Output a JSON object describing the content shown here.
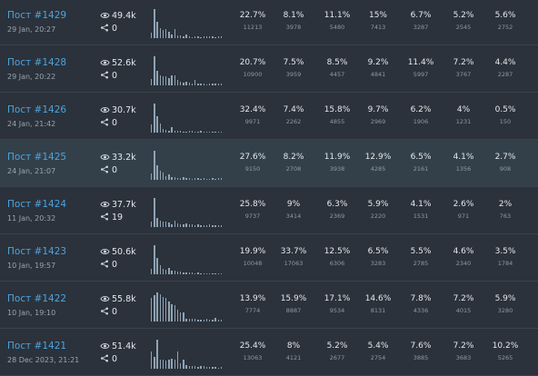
{
  "posts": [
    {
      "title": "Пост #1429",
      "date": "29 Jan, 20:27",
      "views": "49.4k",
      "shares": "0",
      "percents": [
        "22.7%",
        "8.1%",
        "11.1%",
        "15%",
        "6.7%",
        "5.2%",
        "5.6%"
      ],
      "counts": [
        "11213",
        "3978",
        "5480",
        "7413",
        "3287",
        "2545",
        "2752"
      ]
    },
    {
      "title": "Пост #1428",
      "date": "29 Jan, 20:22",
      "views": "52.6k",
      "shares": "0",
      "percents": [
        "20.7%",
        "7.5%",
        "8.5%",
        "9.2%",
        "11.4%",
        "7.2%",
        "4.4%"
      ],
      "counts": [
        "10900",
        "3959",
        "4457",
        "4841",
        "5997",
        "3767",
        "2287"
      ]
    },
    {
      "title": "Пост #1426",
      "date": "24 Jan, 21:42",
      "views": "30.7k",
      "shares": "0",
      "percents": [
        "32.4%",
        "7.4%",
        "15.8%",
        "9.7%",
        "6.2%",
        "4%",
        "0.5%"
      ],
      "counts": [
        "9971",
        "2262",
        "4855",
        "2969",
        "1906",
        "1231",
        "150"
      ]
    },
    {
      "title": "Пост #1425",
      "date": "24 Jan, 21:07",
      "views": "33.2k",
      "shares": "0",
      "percents": [
        "27.6%",
        "8.2%",
        "11.9%",
        "12.9%",
        "6.5%",
        "4.1%",
        "2.7%"
      ],
      "counts": [
        "9150",
        "2708",
        "3938",
        "4285",
        "2161",
        "1356",
        "908"
      ]
    },
    {
      "title": "Пост #1424",
      "date": "11 Jan, 20:32",
      "views": "37.7k",
      "shares": "19",
      "percents": [
        "25.8%",
        "9%",
        "6.3%",
        "5.9%",
        "4.1%",
        "2.6%",
        "2%"
      ],
      "counts": [
        "9737",
        "3414",
        "2369",
        "2220",
        "1531",
        "971",
        "763"
      ]
    },
    {
      "title": "Пост #1423",
      "date": "10 Jan, 19:57",
      "views": "50.6k",
      "shares": "0",
      "percents": [
        "19.9%",
        "33.7%",
        "12.5%",
        "6.5%",
        "5.5%",
        "4.6%",
        "3.5%"
      ],
      "counts": [
        "10048",
        "17063",
        "6306",
        "3283",
        "2785",
        "2340",
        "1784"
      ]
    },
    {
      "title": "Пост #1422",
      "date": "10 Jan, 19:10",
      "views": "55.8k",
      "shares": "0",
      "percents": [
        "13.9%",
        "15.9%",
        "17.1%",
        "14.6%",
        "7.8%",
        "7.2%",
        "5.9%"
      ],
      "counts": [
        "7774",
        "8887",
        "9534",
        "8131",
        "4336",
        "4015",
        "3280"
      ]
    },
    {
      "title": "Пост #1421",
      "date": "28 Dec 2023, 21:21",
      "views": "51.4k",
      "shares": "0",
      "percents": [
        "25.4%",
        "8%",
        "5.2%",
        "5.4%",
        "7.6%",
        "7.2%",
        "10.2%"
      ],
      "counts": [
        "13063",
        "4121",
        "2677",
        "2754",
        "3885",
        "3683",
        "5265"
      ]
    }
  ],
  "sparklines": [
    [
      0.2,
      1,
      0.55,
      0.35,
      0.28,
      0.3,
      0.22,
      0.12,
      0.3,
      0.1,
      0.08,
      0.06,
      0.12,
      0.05,
      0.04,
      0.06,
      0.05,
      0.04,
      0.06,
      0.05,
      0.05,
      0.07,
      0.04,
      0.06,
      0.05
    ],
    [
      0.22,
      1,
      0.5,
      0.35,
      0.3,
      0.3,
      0.25,
      0.35,
      0.33,
      0.2,
      0.12,
      0.1,
      0.12,
      0.08,
      0.06,
      0.2,
      0.05,
      0.05,
      0.06,
      0.04,
      0.05,
      0.06,
      0.07,
      0.05,
      0.05
    ],
    [
      0.28,
      1,
      0.55,
      0.3,
      0.12,
      0.08,
      0.06,
      0.2,
      0.05,
      0.05,
      0.06,
      0.04,
      0.04,
      0.05,
      0.06,
      0.04,
      0.04,
      0.05,
      0.03,
      0.03,
      0.04,
      0.03,
      0.04,
      0.03,
      0.03
    ],
    [
      0.22,
      1,
      0.5,
      0.3,
      0.25,
      0.12,
      0.2,
      0.1,
      0.08,
      0.06,
      0.05,
      0.08,
      0.05,
      0.06,
      0.04,
      0.05,
      0.05,
      0.04,
      0.05,
      0.04,
      0.04,
      0.05,
      0.04,
      0.06,
      0.05
    ],
    [
      0.2,
      1,
      0.32,
      0.22,
      0.18,
      0.2,
      0.15,
      0.1,
      0.22,
      0.12,
      0.08,
      0.1,
      0.12,
      0.09,
      0.08,
      0.07,
      0.1,
      0.06,
      0.07,
      0.06,
      0.08,
      0.07,
      0.05,
      0.06,
      0.05
    ],
    [
      0.2,
      1,
      0.55,
      0.3,
      0.2,
      0.16,
      0.22,
      0.12,
      0.12,
      0.08,
      0.08,
      0.06,
      0.05,
      0.06,
      0.05,
      0.04,
      0.05,
      0.04,
      0.03,
      0.04,
      0.03,
      0.03,
      0.04,
      0.03,
      0.03
    ],
    [
      0.8,
      0.9,
      1,
      0.95,
      0.85,
      0.8,
      0.7,
      0.6,
      0.55,
      0.4,
      0.3,
      0.3,
      0.1,
      0.1,
      0.08,
      0.08,
      0.06,
      0.06,
      0.05,
      0.08,
      0.05,
      0.05,
      0.12,
      0.06,
      0.05
    ],
    [
      0.6,
      0.4,
      1,
      0.3,
      0.3,
      0.28,
      0.3,
      0.35,
      0.3,
      0.6,
      0.2,
      0.3,
      0.12,
      0.1,
      0.1,
      0.08,
      0.06,
      0.1,
      0.08,
      0.05,
      0.05,
      0.06,
      0.05,
      0.04,
      0.05
    ]
  ],
  "icons": {
    "views": "eye-icon",
    "shares": "share-icon"
  },
  "colors": {
    "link": "#4fa3dd",
    "background": "#2b323b",
    "highlight_row": "#33404a",
    "spark": "#8fa3b5"
  }
}
